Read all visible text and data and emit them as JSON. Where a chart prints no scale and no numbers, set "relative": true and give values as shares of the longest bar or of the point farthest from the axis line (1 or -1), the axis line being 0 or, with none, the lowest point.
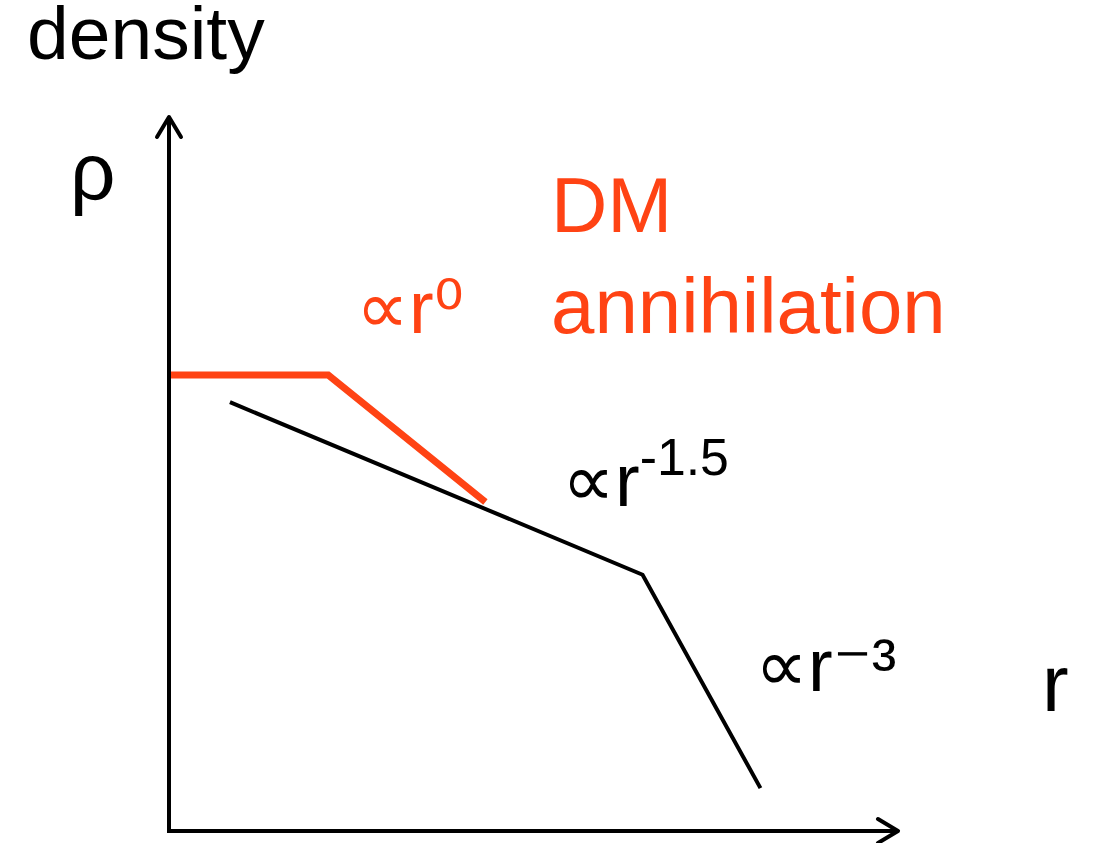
{
  "chart_data": {
    "type": "line",
    "title": "density",
    "xlabel": "r",
    "ylabel": "ρ",
    "annotations": [
      "DM\nannihilation",
      "∝r⁰",
      "∝r$^{-1.5}$",
      "∝r⁻³"
    ],
    "categories": [
      null,
      null,
      null,
      null,
      null,
      null,
      null,
      null,
      null,
      null,
      null,
      null,
      null,
      null,
      null,
      null,
      null,
      null,
      null,
      null,
      null,
      null,
      null,
      null,
      null,
      null,
      null,
      null,
      null,
      null,
      null,
      null,
      null,
      null,
      null,
      null,
      null,
      null
    ],
    "relative": true,
    "line_style": "solid",
    "series": [
      {
        "color": "#000000",
        "values": [
          null,
          null,
          null,
          0.94,
          null,
          null,
          null,
          null,
          null,
          null,
          null,
          null,
          null,
          null,
          null,
          null,
          null,
          null,
          null,
          null,
          null,
          null,
          null,
          null,
          0.56,
          null,
          null,
          null,
          null,
          null,
          0.09,
          null,
          null,
          null,
          null,
          null,
          null,
          null
        ]
      },
      {
        "color": "#ff4314",
        "values": [
          1,
          null,
          null,
          null,
          null,
          null,
          null,
          null,
          1,
          null,
          null,
          null,
          null,
          null,
          null,
          null,
          0.72,
          null,
          null,
          null,
          null,
          null,
          null,
          null,
          null,
          null,
          null,
          null,
          null,
          null,
          null,
          null,
          null,
          null,
          null,
          null,
          null,
          null
        ]
      }
    ]
  }
}
